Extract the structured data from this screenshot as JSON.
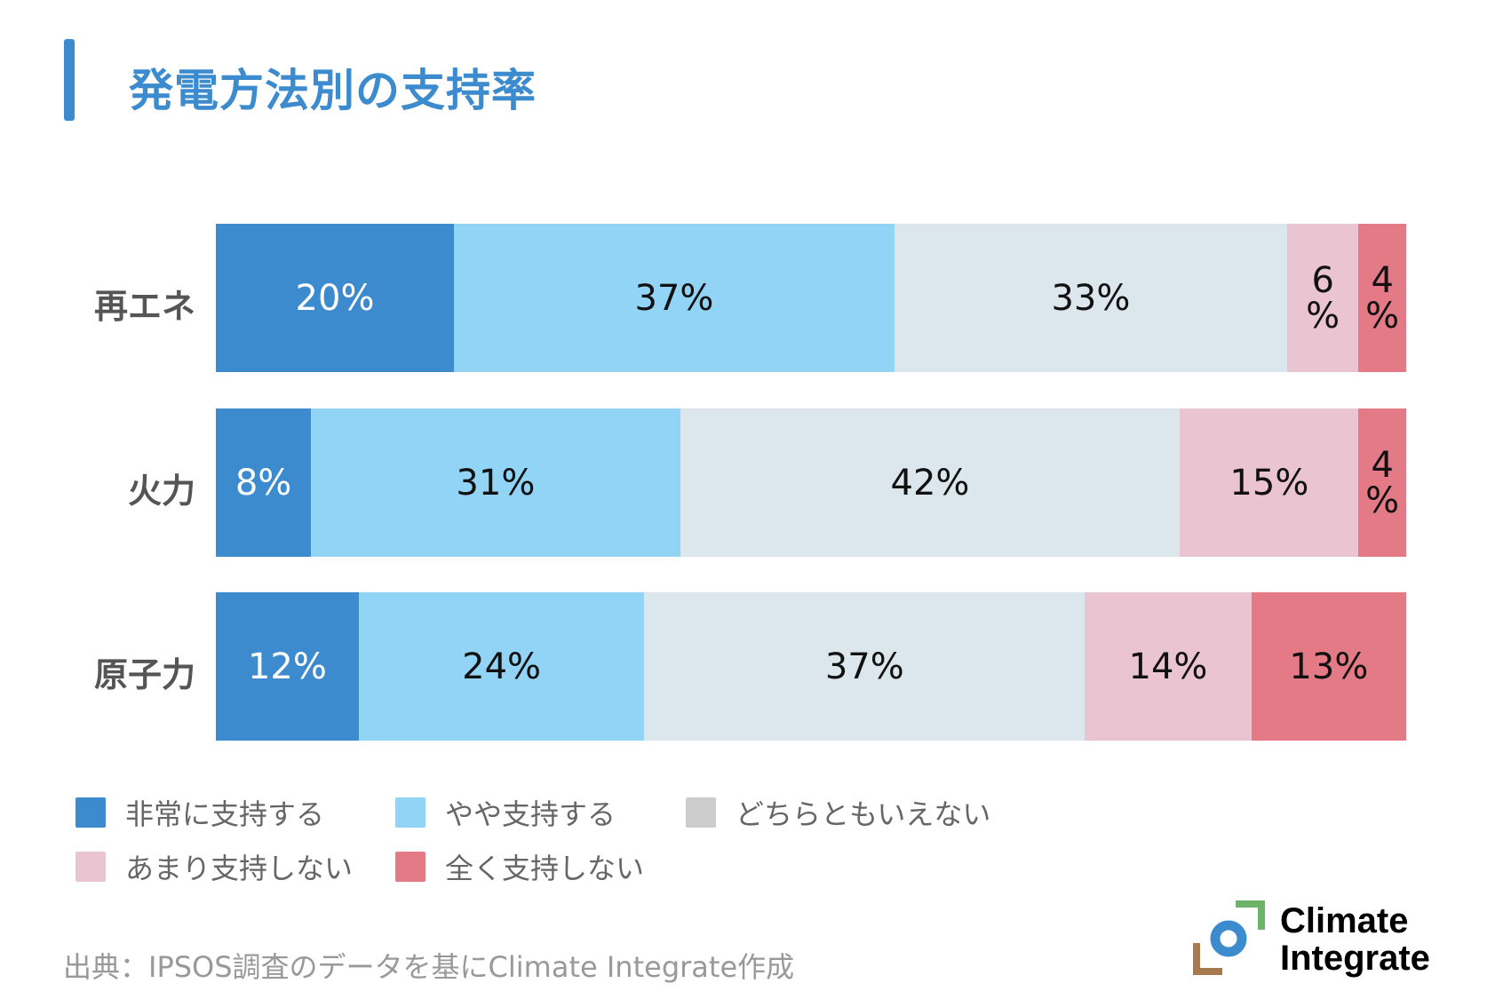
{
  "title": "発電方法別の支持率",
  "chart_data": {
    "type": "bar",
    "stacked": true,
    "orientation": "horizontal",
    "unit": "%",
    "categories": [
      "再エネ",
      "火力",
      "原子力"
    ],
    "series": [
      {
        "name": "非常に支持する",
        "color": "#3d8bcf",
        "text_color": "#ffffff",
        "values": [
          20,
          8,
          12
        ]
      },
      {
        "name": "やや支持する",
        "color": "#92d4f6",
        "text_color": "#111111",
        "values": [
          37,
          31,
          24
        ]
      },
      {
        "name": "どちらともいえない",
        "color": "#dce6ed",
        "legend_color": "#cccccc",
        "text_color": "#111111",
        "values": [
          33,
          42,
          37
        ]
      },
      {
        "name": "あまり支持しない",
        "color": "#eac4d0",
        "text_color": "#111111",
        "values": [
          6,
          15,
          14
        ]
      },
      {
        "name": "全く支持しない",
        "color": "#e57a87",
        "text_color": "#111111",
        "values": [
          4,
          4,
          13
        ]
      }
    ],
    "legend_position": "bottom-left",
    "grid": false
  },
  "source": "出典：IPSOS調査のデータを基にClimate Integrate作成",
  "logo": {
    "text_line1": "Climate",
    "text_line2": "Integrate",
    "colors": {
      "green": "#6db36a",
      "blue": "#3d8bcf",
      "brown": "#a8784f"
    }
  }
}
